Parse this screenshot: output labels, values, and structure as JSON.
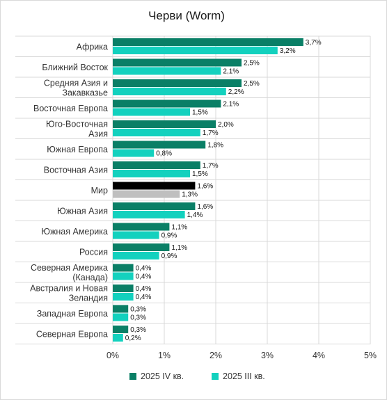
{
  "chart_data": {
    "type": "bar",
    "orientation": "horizontal",
    "title": "Черви (Worm)",
    "categories": [
      [
        "Африка"
      ],
      [
        "Ближний Восток"
      ],
      [
        "Средняя Азия и",
        "Закавказье"
      ],
      [
        "Восточная Европа"
      ],
      [
        "Юго-Восточная",
        "Азия"
      ],
      [
        "Южная Европа"
      ],
      [
        "Восточная Азия"
      ],
      [
        "Мир"
      ],
      [
        "Южная Азия"
      ],
      [
        "Южная Америка"
      ],
      [
        "Россия"
      ],
      [
        "Северная Америка",
        "(Канада)"
      ],
      [
        "Австралия и Новая",
        "Зеландия"
      ],
      [
        "Западная Европа"
      ],
      [
        "Северная Европа"
      ]
    ],
    "series": [
      {
        "name": "2025 IV кв.",
        "color": "#0a7f66",
        "values": [
          3.7,
          2.5,
          2.5,
          2.1,
          2.0,
          1.8,
          1.7,
          1.6,
          1.6,
          1.1,
          1.1,
          0.4,
          0.4,
          0.3,
          0.3
        ],
        "labels": [
          "3,7%",
          "2,5%",
          "2,5%",
          "2,1%",
          "2,0%",
          "1,8%",
          "1,7%",
          "1,6%",
          "1,6%",
          "1,1%",
          "1,1%",
          "0,4%",
          "0,4%",
          "0,3%",
          "0,3%"
        ]
      },
      {
        "name": "2025 III кв.",
        "color": "#13d1be",
        "values": [
          3.2,
          2.1,
          2.2,
          1.5,
          1.7,
          0.8,
          1.5,
          1.3,
          1.4,
          0.9,
          0.9,
          0.4,
          0.4,
          0.3,
          0.2
        ],
        "labels": [
          "3,2%",
          "2,1%",
          "2,2%",
          "1,5%",
          "1,7%",
          "0,8%",
          "1,5%",
          "1,3%",
          "1,4%",
          "0,9%",
          "0,9%",
          "0,4%",
          "0,4%",
          "0,3%",
          "0,2%"
        ]
      }
    ],
    "highlight": {
      "category_index": 7,
      "colors": [
        "#000000",
        "#bfbfbf"
      ]
    },
    "xlim": [
      0,
      5
    ],
    "xticks": [
      0,
      1,
      2,
      3,
      4,
      5
    ],
    "xtick_labels": [
      "0%",
      "1%",
      "2%",
      "3%",
      "4%",
      "5%"
    ],
    "grid": true,
    "legend_position": "bottom"
  }
}
